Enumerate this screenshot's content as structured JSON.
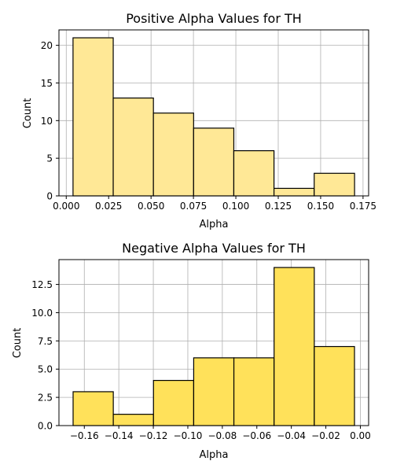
{
  "chart_data": [
    {
      "type": "bar",
      "title": "Positive Alpha Values for TH",
      "xlabel": "Alpha",
      "ylabel": "Count",
      "bin_edges": [
        0.004,
        0.0277,
        0.0514,
        0.0751,
        0.0988,
        0.1225,
        0.1462,
        0.17
      ],
      "values": [
        21,
        13,
        11,
        9,
        6,
        1,
        3
      ],
      "xlim": [
        -0.0043,
        0.1783
      ],
      "ylim": [
        0,
        22.05
      ],
      "xticks": [
        0.0,
        0.025,
        0.05,
        0.075,
        0.1,
        0.125,
        0.15,
        0.175
      ],
      "xtick_labels": [
        "0.000",
        "0.025",
        "0.050",
        "0.075",
        "0.100",
        "0.125",
        "0.150",
        "0.175"
      ],
      "yticks": [
        0,
        5,
        10,
        15,
        20
      ],
      "ytick_labels": [
        "0",
        "5",
        "10",
        "15",
        "20"
      ],
      "grid": true,
      "bar_color": "#ffe896",
      "edge_color": "#000000"
    },
    {
      "type": "bar",
      "title": "Negative Alpha Values for TH",
      "xlabel": "Alpha",
      "ylabel": "Count",
      "bin_edges": [
        -0.1665,
        -0.1432,
        -0.1199,
        -0.0966,
        -0.0733,
        -0.05,
        -0.0267,
        -0.0034
      ],
      "values": [
        3,
        1,
        4,
        6,
        6,
        14,
        7
      ],
      "xlim": [
        -0.1747,
        0.0048
      ],
      "ylim": [
        0,
        14.7
      ],
      "xticks": [
        -0.16,
        -0.14,
        -0.12,
        -0.1,
        -0.08,
        -0.06,
        -0.04,
        -0.02,
        0.0
      ],
      "xtick_labels": [
        "−0.16",
        "−0.14",
        "−0.12",
        "−0.10",
        "−0.08",
        "−0.06",
        "−0.04",
        "−0.02",
        "0.00"
      ],
      "yticks": [
        0,
        2.5,
        5,
        7.5,
        10,
        12.5
      ],
      "ytick_labels": [
        "0.0",
        "2.5",
        "5.0",
        "7.5",
        "10.0",
        "12.5"
      ],
      "grid": true,
      "bar_color": "#ffe15a",
      "edge_color": "#000000"
    }
  ]
}
